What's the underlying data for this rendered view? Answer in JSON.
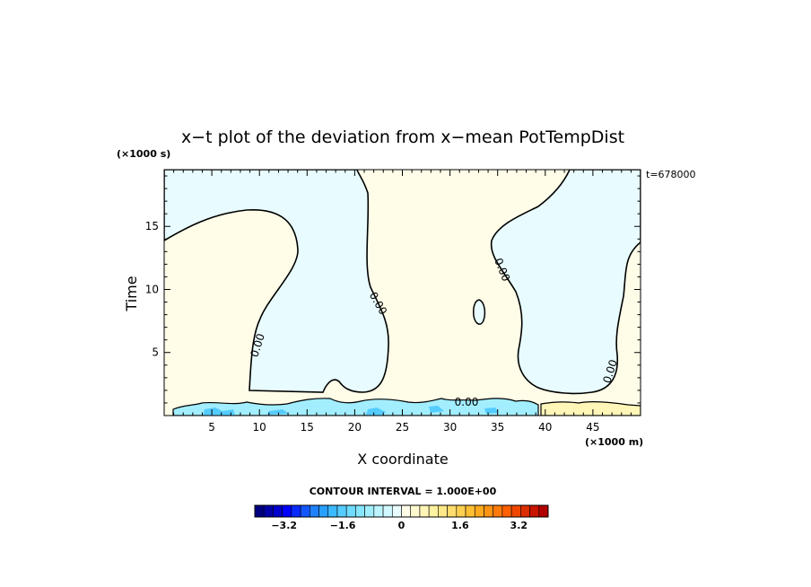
{
  "chart_data": {
    "type": "heatmap",
    "title": "x−t plot of the deviation from x−mean PotTempDist",
    "xlabel": "X coordinate",
    "ylabel": "Time",
    "x_unit": "(×1000 m)",
    "y_unit": "(×1000 s)",
    "time_stamp": "t=678000",
    "xlim": [
      0,
      50
    ],
    "ylim": [
      0,
      19.5
    ],
    "x_ticks": [
      5,
      10,
      15,
      20,
      25,
      30,
      35,
      40,
      45
    ],
    "y_ticks": [
      5,
      10,
      15
    ],
    "x_tick_labels": [
      "5",
      "10",
      "15",
      "20",
      "25",
      "30",
      "35",
      "40",
      "45"
    ],
    "y_tick_labels": [
      "5",
      "10",
      "15"
    ],
    "contour_level": 0.0,
    "contour_label_text": "0.00",
    "contour_interval_text": "CONTOUR INTERVAL = 1.000E+00",
    "colorbar": {
      "min": -4.0,
      "max": 4.0,
      "ticks": [
        -3.2,
        -1.6,
        0,
        1.6,
        3.2
      ],
      "tick_labels": [
        "−3.2",
        "−1.6",
        "0",
        "1.6",
        "3.2"
      ],
      "colors": [
        "#00007f",
        "#0000a6",
        "#0000cc",
        "#0000ff",
        "#0a2bff",
        "#1456ff",
        "#1e82ff",
        "#28a0ff",
        "#3cbaff",
        "#55ccff",
        "#6fdcff",
        "#88e6ff",
        "#a2eeff",
        "#bcf4ff",
        "#d2f8ff",
        "#e8fcff",
        "#fffde8",
        "#fffad0",
        "#fff6b8",
        "#fff2a0",
        "#ffe888",
        "#ffdc6c",
        "#ffd050",
        "#ffc034",
        "#ffaa1e",
        "#ff9414",
        "#ff7a0a",
        "#ff6000",
        "#f04600",
        "#dc2d00",
        "#c81400",
        "#b00000"
      ]
    },
    "regions": {
      "negative_color": "#e8fcff",
      "positive_color": "#fffce8",
      "strong_positive_color": "#fff6b8",
      "strong_negative_color": "#a2eeff"
    }
  }
}
